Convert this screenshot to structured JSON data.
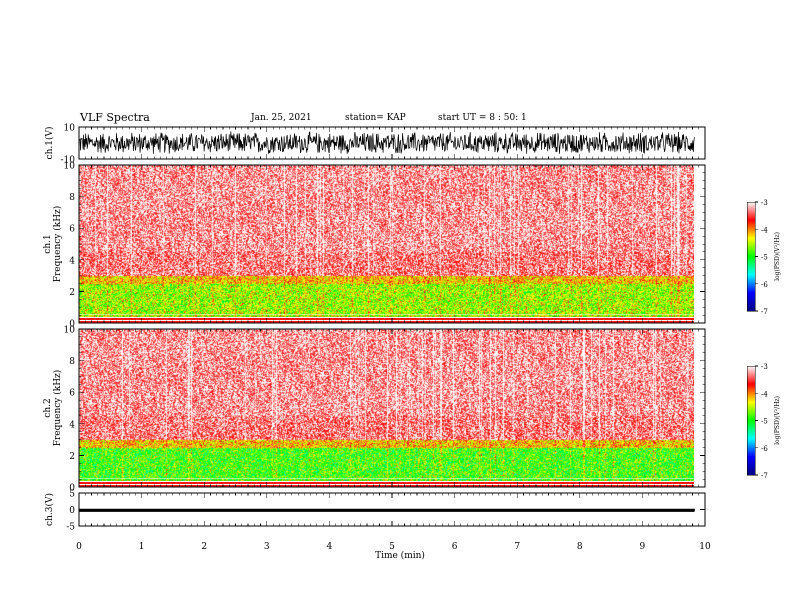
{
  "header": {
    "title": "VLF Spectra",
    "date": "Jan. 25, 2021",
    "station": "station= KAP",
    "start_ut": "start  UT =  8 : 50: 1"
  },
  "chart_data": [
    {
      "type": "line",
      "panel": "ch1-waveform",
      "ylabel": "ch.1(V)",
      "ylim": [
        -10,
        10
      ],
      "y_ticks": [
        "10",
        "-10"
      ],
      "series": [
        {
          "color": "#000000",
          "typical_range": [
            -8,
            8
          ]
        }
      ]
    },
    {
      "type": "heatmap",
      "panel": "ch1-spectrogram",
      "ylabel": "ch.1\nFrequency  (kHz)",
      "ylim": [
        0,
        10
      ],
      "y_ticks": [
        "0",
        "2",
        "4",
        "6",
        "8",
        "10"
      ],
      "colorbar": {
        "label": "log(PSD)(V²/Hz)",
        "range": [
          -7,
          -3
        ],
        "ticks": [
          "-3",
          "-4",
          "-5",
          "-6",
          "-7"
        ],
        "colors": [
          "#000080",
          "#0000ff",
          "#00ffff",
          "#00ff00",
          "#ffff00",
          "#ff0000",
          "#ffffff"
        ]
      }
    },
    {
      "type": "heatmap",
      "panel": "ch2-spectrogram",
      "ylabel": "ch.2\nFrequency  (kHz)",
      "ylim": [
        0,
        10
      ],
      "y_ticks": [
        "0",
        "2",
        "4",
        "6",
        "8",
        "10"
      ],
      "colorbar": {
        "label": "log(PSD)(V²/Hz)",
        "range": [
          -7,
          -3
        ],
        "ticks": [
          "-3",
          "-4",
          "-5",
          "-6",
          "-7"
        ],
        "colors": [
          "#000080",
          "#0000ff",
          "#00ffff",
          "#00ff00",
          "#ffff00",
          "#ff0000",
          "#ffffff"
        ]
      }
    },
    {
      "type": "line",
      "panel": "ch3-waveform",
      "ylabel": "ch.3(V)",
      "ylim": [
        -5,
        5
      ],
      "y_ticks": [
        "5",
        "0",
        "-5"
      ],
      "series": [
        {
          "color": "#000000",
          "typical_range": [
            -0.7,
            0.2
          ]
        }
      ]
    }
  ],
  "x_axis": {
    "label": "Time  (min)",
    "range": [
      0,
      10
    ],
    "ticks": [
      "0",
      "1",
      "2",
      "3",
      "4",
      "5",
      "6",
      "7",
      "8",
      "9",
      "10"
    ],
    "data_end": 9.83
  }
}
